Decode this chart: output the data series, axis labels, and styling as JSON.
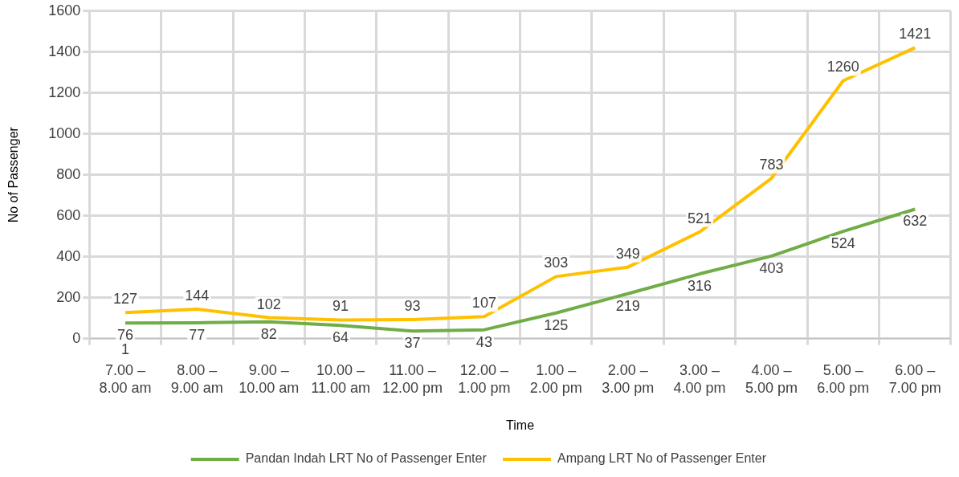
{
  "chart_data": {
    "type": "line",
    "xlabel": "Time",
    "ylabel": "No of Passenger",
    "categories": [
      "7.00 – 8.00 am",
      "8.00 – 9.00 am",
      "9.00 – 10.00 am",
      "10.00 – 11.00 am",
      "11.00 – 12.00 pm",
      "12.00 – 1.00 pm",
      "1.00 – 2.00 pm",
      "2.00 – 3.00 pm",
      "3.00 – 4.00 pm",
      "4.00 – 5.00 pm",
      "5.00 – 6.00 pm",
      "6.00 – 7.00 pm"
    ],
    "series": [
      {
        "name": "Pandan Indah LRT No of Passenger Enter",
        "color": "#70ad47",
        "values": [
          76,
          77,
          82,
          64,
          37,
          43,
          125,
          219,
          316,
          403,
          524,
          632
        ]
      },
      {
        "name": "Ampang LRT No of Passenger Enter",
        "color": "#ffc000",
        "values": [
          127,
          144,
          102,
          91,
          93,
          107,
          303,
          349,
          521,
          783,
          1260,
          1421
        ]
      }
    ],
    "annotations": [
      "1"
    ],
    "ylim": [
      0,
      1600
    ],
    "yticks": [
      0,
      200,
      400,
      600,
      800,
      1000,
      1200,
      1400,
      1600
    ],
    "grid": true,
    "legend": "bottom",
    "data_labels": true,
    "marker": "none",
    "line_style": "solid"
  }
}
